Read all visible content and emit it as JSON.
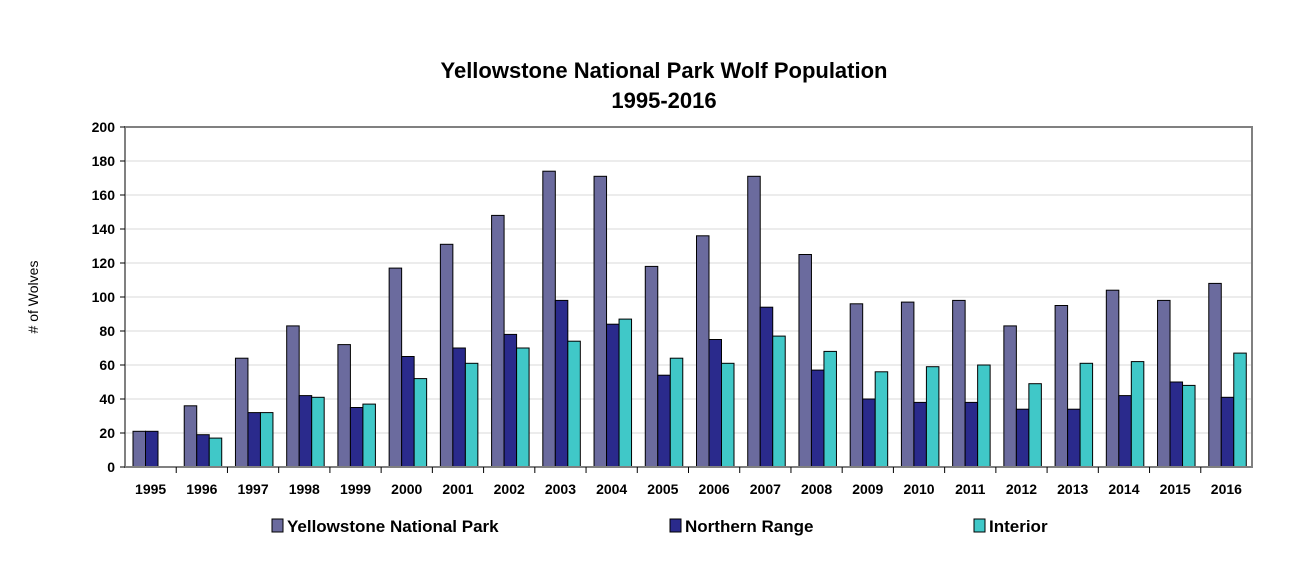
{
  "chart_data": {
    "type": "bar",
    "title": "Yellowstone National Park Wolf Population",
    "subtitle": "1995-2016",
    "ylabel": "# of Wolves",
    "xlabel": "",
    "ylim": [
      0,
      200
    ],
    "yticks": [
      0,
      20,
      40,
      60,
      80,
      100,
      120,
      140,
      160,
      180,
      200
    ],
    "grid": true,
    "legend_position": "bottom",
    "categories": [
      "1995",
      "1996",
      "1997",
      "1998",
      "1999",
      "2000",
      "2001",
      "2002",
      "2003",
      "2004",
      "2005",
      "2006",
      "2007",
      "2008",
      "2009",
      "2010",
      "2011",
      "2012",
      "2013",
      "2014",
      "2015",
      "2016"
    ],
    "series": [
      {
        "name": "Yellowstone National Park",
        "color": "#6b6b9e",
        "values": [
          21,
          36,
          64,
          83,
          72,
          117,
          131,
          148,
          174,
          171,
          118,
          136,
          171,
          125,
          96,
          97,
          98,
          83,
          95,
          104,
          98,
          108
        ]
      },
      {
        "name": "Northern Range",
        "color": "#2a2a8c",
        "values": [
          21,
          19,
          32,
          42,
          35,
          65,
          70,
          78,
          98,
          84,
          54,
          75,
          94,
          57,
          40,
          38,
          38,
          34,
          34,
          42,
          50,
          41
        ]
      },
      {
        "name": "Interior",
        "color": "#40c8c8",
        "values": [
          null,
          17,
          32,
          41,
          37,
          52,
          61,
          70,
          74,
          87,
          64,
          61,
          77,
          68,
          56,
          59,
          60,
          49,
          61,
          62,
          48,
          67
        ]
      }
    ]
  }
}
